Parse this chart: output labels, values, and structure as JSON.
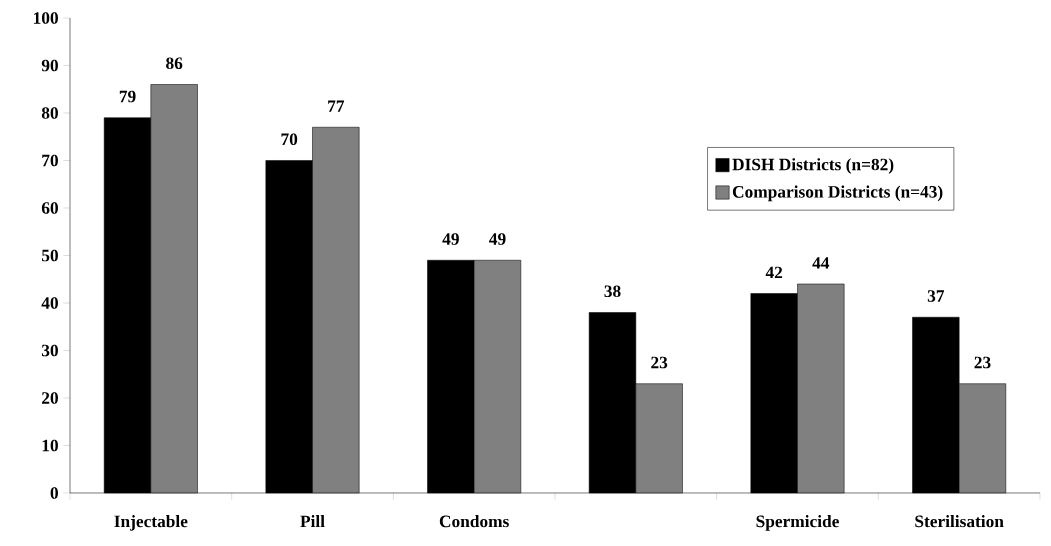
{
  "chart_data": {
    "type": "bar",
    "categories": [
      "Injectable",
      "Pill",
      "Condoms",
      null,
      "Spermicide",
      "Sterilisation"
    ],
    "series": [
      {
        "name": "DISH Districts (n=82)",
        "color": "#000000",
        "values": [
          79,
          70,
          49,
          38,
          42,
          37
        ]
      },
      {
        "name": "Comparison Districts (n=43)",
        "color": "#808080",
        "values": [
          86,
          77,
          49,
          23,
          44,
          23
        ]
      }
    ],
    "ylim": [
      0,
      100
    ],
    "yticks": [
      0,
      10,
      20,
      30,
      40,
      50,
      60,
      70,
      80,
      90,
      100
    ],
    "data_labels": true,
    "legend": "right",
    "grid": false
  }
}
